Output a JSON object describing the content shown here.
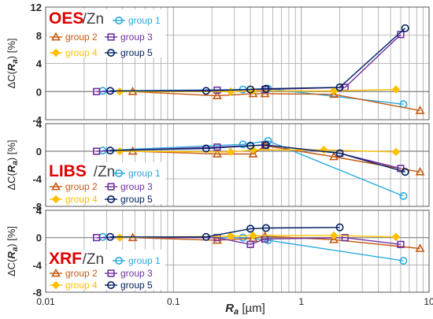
{
  "chart_data": [
    {
      "type": "line",
      "panel_label": "OES",
      "matrix_label": "/Zn",
      "ylabel_prefix": "ΔC(",
      "ylabel_var": "R",
      "ylabel_sub": "a",
      "ylabel_suffix": ") [%]",
      "ylim": [
        -4,
        12
      ],
      "yticks": [
        -4,
        0,
        4,
        8,
        12
      ],
      "yticklabels": [
        "-4",
        "0",
        "4",
        "8",
        "12"
      ],
      "legend_rows": [
        [
          "",
          "group 1"
        ],
        [
          "group 2",
          "group 3"
        ],
        [
          "group 4",
          "group 5"
        ]
      ],
      "series": [
        {
          "name": "group 1",
          "color": "#2aa9df",
          "marker": "circle",
          "x": [
            0.028,
            0.35,
            0.55,
            6.3
          ],
          "y": [
            0.1,
            0.3,
            0.4,
            -1.8
          ]
        },
        {
          "name": "group 2",
          "color": "#c55a11",
          "marker": "triangle",
          "x": [
            0.048,
            0.22,
            0.42,
            0.52,
            1.8,
            8.5
          ],
          "y": [
            0.0,
            -0.6,
            -0.3,
            -0.3,
            -0.4,
            -2.7
          ]
        },
        {
          "name": "group 3",
          "color": "#7030a0",
          "marker": "square",
          "x": [
            0.025,
            0.22,
            0.52,
            2.2,
            6.0
          ],
          "y": [
            0.0,
            0.2,
            0.3,
            0.6,
            8.1
          ]
        },
        {
          "name": "group 4",
          "color": "#ffc000",
          "marker": "diamond",
          "x": [
            0.038,
            0.28,
            0.42,
            1.8,
            5.5
          ],
          "y": [
            0.0,
            0.0,
            0.1,
            0.1,
            0.3
          ]
        },
        {
          "name": "group 5",
          "color": "#002060",
          "marker": "circle",
          "x": [
            0.032,
            0.18,
            0.4,
            0.53,
            2.0,
            6.5
          ],
          "y": [
            0.1,
            0.1,
            0.3,
            0.4,
            0.6,
            9.0
          ]
        }
      ]
    },
    {
      "type": "line",
      "panel_label": "LIBS",
      "matrix_label": "/Zn",
      "ylabel_prefix": "ΔC(",
      "ylabel_var": "R",
      "ylabel_sub": "a",
      "ylabel_suffix": ") [%]",
      "ylim": [
        -8,
        4
      ],
      "yticks": [
        -8,
        -4,
        0,
        4
      ],
      "yticklabels": [
        "-8",
        "-4",
        "0",
        "4"
      ],
      "legend_rows": [
        [
          "",
          "group 1"
        ],
        [
          "group 2",
          "group 3"
        ],
        [
          "group 4",
          "group 5"
        ]
      ],
      "series": [
        {
          "name": "group 1",
          "color": "#2aa9df",
          "marker": "circle",
          "x": [
            0.028,
            0.35,
            0.55,
            6.3
          ],
          "y": [
            0.1,
            1.0,
            1.5,
            -6.5
          ]
        },
        {
          "name": "group 2",
          "color": "#c55a11",
          "marker": "triangle",
          "x": [
            0.048,
            0.22,
            0.42,
            0.52,
            1.8,
            8.5
          ],
          "y": [
            0.0,
            -0.4,
            -0.4,
            0.8,
            -0.8,
            -3.0
          ]
        },
        {
          "name": "group 3",
          "color": "#7030a0",
          "marker": "square",
          "x": [
            0.025,
            0.22,
            0.52,
            2.0,
            6.0
          ],
          "y": [
            0.0,
            0.6,
            0.9,
            -0.3,
            -2.5
          ]
        },
        {
          "name": "group 4",
          "color": "#ffc000",
          "marker": "diamond",
          "x": [
            0.038,
            0.28,
            0.42,
            1.5,
            5.5
          ],
          "y": [
            0.0,
            -0.1,
            0.2,
            0.2,
            -0.1
          ]
        },
        {
          "name": "group 5",
          "color": "#002060",
          "marker": "circle",
          "x": [
            0.032,
            0.18,
            0.4,
            0.53,
            2.0,
            6.5
          ],
          "y": [
            0.1,
            0.4,
            0.8,
            0.9,
            -0.3,
            -3.0
          ]
        }
      ]
    },
    {
      "type": "line",
      "panel_label": "XRF",
      "matrix_label": "/Zn",
      "ylabel_prefix": "ΔC(",
      "ylabel_var": "R",
      "ylabel_sub": "a",
      "ylabel_suffix": ") [%]",
      "ylim": [
        -8,
        4
      ],
      "yticks": [
        -8,
        -4,
        0,
        4
      ],
      "yticklabels": [
        "-8",
        "-4",
        "0",
        "4"
      ],
      "xlabel_var": "R",
      "xlabel_sub": "a",
      "xlabel_suffix": " [µm]",
      "xscale": "log",
      "xlim": [
        0.01,
        10
      ],
      "xticks": [
        0.01,
        0.1,
        1,
        10
      ],
      "xticklabels": [
        "0.01",
        "0.1",
        "1",
        "10"
      ],
      "legend_rows": [
        [
          "",
          "group 1"
        ],
        [
          "group 2",
          "group 3"
        ],
        [
          "group 4",
          "group 5"
        ]
      ],
      "series": [
        {
          "name": "group 1",
          "color": "#2aa9df",
          "marker": "circle",
          "x": [
            0.028,
            0.35,
            0.55,
            6.3
          ],
          "y": [
            0.1,
            0.0,
            -0.4,
            -3.4
          ]
        },
        {
          "name": "group 2",
          "color": "#c55a11",
          "marker": "triangle",
          "x": [
            0.048,
            0.22,
            0.42,
            0.52,
            1.8,
            8.5
          ],
          "y": [
            0.0,
            -0.4,
            -0.1,
            0.2,
            -0.3,
            -1.6
          ]
        },
        {
          "name": "group 3",
          "color": "#7030a0",
          "marker": "square",
          "x": [
            0.025,
            0.22,
            0.4,
            0.52,
            2.2,
            6.0
          ],
          "y": [
            0.0,
            0.0,
            -1.0,
            -0.2,
            0.0,
            -1.0
          ]
        },
        {
          "name": "group 4",
          "color": "#ffc000",
          "marker": "diamond",
          "x": [
            0.038,
            0.28,
            0.42,
            1.8,
            5.5
          ],
          "y": [
            0.0,
            0.2,
            0.3,
            0.3,
            0.1
          ]
        },
        {
          "name": "group 5",
          "color": "#002060",
          "marker": "circle",
          "x": [
            0.032,
            0.18,
            0.4,
            0.53,
            2.0
          ],
          "y": [
            0.1,
            0.1,
            1.3,
            1.4,
            1.5
          ]
        }
      ]
    }
  ],
  "colors": {
    "panel_label": "#e00000",
    "matrix_label": "#404040",
    "grid": "#a6a6a6",
    "axis_frame": "#595959",
    "zero_line": "#7f7f7f"
  }
}
